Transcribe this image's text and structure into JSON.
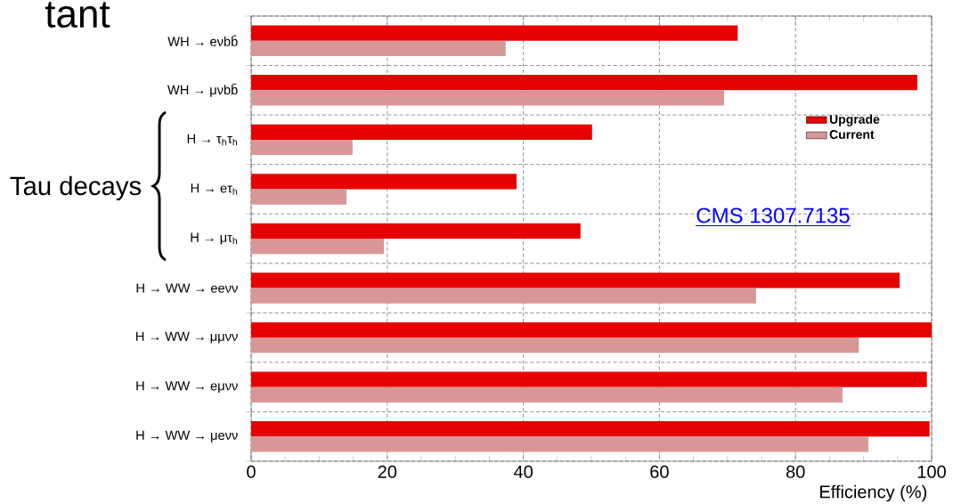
{
  "chart_data": {
    "type": "bar",
    "orientation": "horizontal",
    "xlabel": "Efficiency (%)",
    "categories": [
      "WH → eνbb̄",
      "WH → μνbb̄",
      "H → τ$_{h}$τ$_{h}$",
      "H → eτ$_{h}$",
      "H → μτ$_{h}$",
      "H → WW → eeνν",
      "H → WW → μμνν",
      "H → WW → eμνν",
      "H → WW → μeνν"
    ],
    "series": [
      {
        "name": "Upgrade",
        "color": "#e60000",
        "values": [
          71.5,
          97.9,
          50.1,
          39.0,
          48.4,
          95.3,
          100,
          99.3,
          99.7
        ]
      },
      {
        "name": "Current",
        "color": "#d99696",
        "values": [
          37.4,
          69.5,
          14.9,
          14.0,
          19.5,
          74.2,
          89.3,
          86.9,
          90.7
        ]
      }
    ],
    "xlim": [
      0,
      100
    ],
    "xticks": [
      0,
      20,
      40,
      60,
      80,
      100
    ],
    "grid": true,
    "legend": "right",
    "annotations": [
      "tant",
      "Tau decays",
      "CMS 1307.7135"
    ]
  }
}
